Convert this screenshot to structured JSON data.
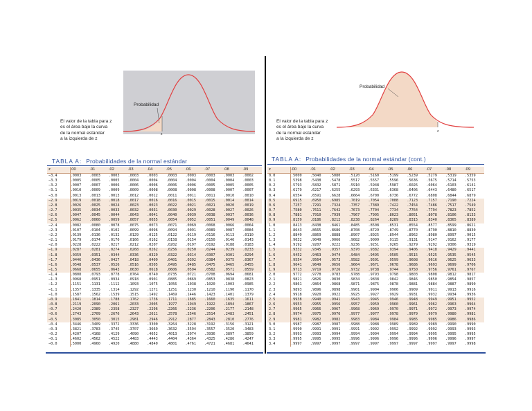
{
  "left": {
    "probability_label": "Probabilidad",
    "z_label": "z",
    "caption_lines": [
      "El valor de la tabla para z",
      "es el área bajo la curva",
      "de la normal estándar",
      "a la izquierda de z"
    ],
    "table_label": "TABLA A:",
    "table_title": "Probabilidades de la normal estándar",
    "columns": [
      "z",
      ".00",
      ".01",
      ".02",
      ".03",
      ".04",
      ".05",
      ".06",
      ".07",
      ".08",
      ".09"
    ],
    "rows": [
      [
        "−3.4",
        ".0003",
        ".0003",
        ".0003",
        ".0003",
        ".0003",
        ".0003",
        ".0003",
        ".0003",
        ".0003",
        ".0002"
      ],
      [
        "−3.3",
        ".0005",
        ".0005",
        ".0005",
        ".0004",
        ".0004",
        ".0004",
        ".0004",
        ".0004",
        ".0004",
        ".0003"
      ],
      [
        "−3.2",
        ".0007",
        ".0007",
        ".0006",
        ".0006",
        ".0006",
        ".0006",
        ".0006",
        ".0005",
        ".0005",
        ".0005"
      ],
      [
        "−3.1",
        ".0010",
        ".0009",
        ".0009",
        ".0009",
        ".0008",
        ".0008",
        ".0008",
        ".0008",
        ".0007",
        ".0007"
      ],
      [
        "−3.0",
        ".0013",
        ".0013",
        ".0013",
        ".0012",
        ".0012",
        ".0011",
        ".0011",
        ".0011",
        ".0010",
        ".0010"
      ],
      [
        "−2.9",
        ".0019",
        ".0018",
        ".0018",
        ".0017",
        ".0016",
        ".0016",
        ".0015",
        ".0015",
        ".0014",
        ".0014"
      ],
      [
        "−2.8",
        ".0026",
        ".0025",
        ".0024",
        ".0023",
        ".0023",
        ".0022",
        ".0021",
        ".0021",
        ".0020",
        ".0019"
      ],
      [
        "−2.7",
        ".0035",
        ".0034",
        ".0033",
        ".0032",
        ".0031",
        ".0030",
        ".0029",
        ".0028",
        ".0027",
        ".0026"
      ],
      [
        "−2.6",
        ".0047",
        ".0045",
        ".0044",
        ".0043",
        ".0041",
        ".0040",
        ".0039",
        ".0038",
        ".0037",
        ".0036"
      ],
      [
        "−2.5",
        ".0062",
        ".0060",
        ".0059",
        ".0057",
        ".0055",
        ".0054",
        ".0052",
        ".0051",
        ".0049",
        ".0048"
      ],
      [
        "−2.4",
        ".0082",
        ".0080",
        ".0078",
        ".0075",
        ".0073",
        ".0071",
        ".0069",
        ".0068",
        ".0066",
        ".0064"
      ],
      [
        "−2.3",
        ".0107",
        ".0104",
        ".0102",
        ".0099",
        ".0096",
        ".0094",
        ".0091",
        ".0089",
        ".0087",
        ".0084"
      ],
      [
        "−2.2",
        ".0139",
        ".0136",
        ".0132",
        ".0129",
        ".0125",
        ".0122",
        ".0119",
        ".0116",
        ".0113",
        ".0110"
      ],
      [
        "−2.1",
        ".0179",
        ".0174",
        ".0170",
        ".0166",
        ".0162",
        ".0158",
        ".0154",
        ".0150",
        ".0146",
        ".0143"
      ],
      [
        "−2.0",
        ".0228",
        ".0222",
        ".0217",
        ".0212",
        ".0207",
        ".0202",
        ".0197",
        ".0192",
        ".0188",
        ".0183"
      ],
      [
        "−1.9",
        ".0287",
        ".0281",
        ".0274",
        ".0268",
        ".0262",
        ".0256",
        ".0250",
        ".0244",
        ".0239",
        ".0233"
      ],
      [
        "−1.8",
        ".0359",
        ".0351",
        ".0344",
        ".0336",
        ".0329",
        ".0322",
        ".0314",
        ".0307",
        ".0301",
        ".0294"
      ],
      [
        "−1.7",
        ".0446",
        ".0436",
        ".0427",
        ".0418",
        ".0409",
        ".0401",
        ".0392",
        ".0384",
        ".0375",
        ".0367"
      ],
      [
        "−1.6",
        ".0548",
        ".0537",
        ".0526",
        ".0516",
        ".0505",
        ".0495",
        ".0485",
        ".0475",
        ".0465",
        ".0455"
      ],
      [
        "−1.5",
        ".0668",
        ".0655",
        ".0643",
        ".0630",
        ".0618",
        ".0606",
        ".0594",
        ".0582",
        ".0571",
        ".0559"
      ],
      [
        "−1.4",
        ".0808",
        ".0793",
        ".0778",
        ".0764",
        ".0749",
        ".0735",
        ".0721",
        ".0708",
        ".0694",
        ".0681"
      ],
      [
        "−1.3",
        ".0968",
        ".0951",
        ".0934",
        ".0918",
        ".0901",
        ".0885",
        ".0869",
        ".0853",
        ".0838",
        ".0823"
      ],
      [
        "−1.2",
        ".1151",
        ".1131",
        ".1112",
        ".1093",
        ".1075",
        ".1056",
        ".1038",
        ".1020",
        ".1003",
        ".0985"
      ],
      [
        "−1.1",
        ".1357",
        ".1335",
        ".1314",
        ".1292",
        ".1271",
        ".1251",
        ".1230",
        ".1210",
        ".1190",
        ".1170"
      ],
      [
        "−1.0",
        ".1587",
        ".1562",
        ".1539",
        ".1515",
        ".1492",
        ".1469",
        ".1446",
        ".1423",
        ".1401",
        ".1379"
      ],
      [
        "−0.9",
        ".1841",
        ".1814",
        ".1788",
        ".1762",
        ".1736",
        ".1711",
        ".1685",
        ".1660",
        ".1635",
        ".1611"
      ],
      [
        "−0.8",
        ".2119",
        ".2090",
        ".2061",
        ".2033",
        ".2005",
        ".1977",
        ".1949",
        ".1922",
        ".1894",
        ".1867"
      ],
      [
        "−0.7",
        ".2420",
        ".2389",
        ".2358",
        ".2327",
        ".2296",
        ".2266",
        ".2236",
        ".2206",
        ".2177",
        ".2148"
      ],
      [
        "−0.6",
        ".2743",
        ".2709",
        ".2676",
        ".2643",
        ".2611",
        ".2578",
        ".2546",
        ".2514",
        ".2483",
        ".2451"
      ],
      [
        "−0.5",
        ".3085",
        ".3050",
        ".3015",
        ".2981",
        ".2946",
        ".2912",
        ".2877",
        ".2843",
        ".2810",
        ".2776"
      ],
      [
        "−0.4",
        ".3446",
        ".3409",
        ".3372",
        ".3336",
        ".3300",
        ".3264",
        ".3228",
        ".3192",
        ".3156",
        ".3121"
      ],
      [
        "−0.3",
        ".3821",
        ".3783",
        ".3745",
        ".3707",
        ".3669",
        ".3632",
        ".3594",
        ".3557",
        ".3520",
        ".3483"
      ],
      [
        "−0.2",
        ".4207",
        ".4168",
        ".4129",
        ".4090",
        ".4052",
        ".4013",
        ".3974",
        ".3936",
        ".3897",
        ".3859"
      ],
      [
        "−0.1",
        ".4602",
        ".4562",
        ".4522",
        ".4483",
        ".4443",
        ".4404",
        ".4364",
        ".4325",
        ".4286",
        ".4247"
      ],
      [
        "−0.0",
        ".5000",
        ".4960",
        ".4920",
        ".4880",
        ".4840",
        ".4801",
        ".4761",
        ".4721",
        ".4681",
        ".4641"
      ]
    ]
  },
  "right": {
    "probability_label": "Probabilidad",
    "z_label": "z",
    "caption_lines": [
      "El valor de la tabla para z",
      "es el área bajo la curva",
      "de la normal estándar",
      "a la izquierda de z"
    ],
    "table_label": "TABLA A:",
    "table_title": "Probabilidades de la normal estándar (cont.)",
    "columns": [
      "z",
      ".00",
      ".01",
      ".02",
      ".03",
      ".04",
      ".05",
      ".06",
      ".07",
      ".08",
      ".09"
    ],
    "rows": [
      [
        "0.0",
        ".5000",
        ".5040",
        ".5080",
        ".5120",
        ".5160",
        ".5199",
        ".5239",
        ".5279",
        ".5319",
        ".5359"
      ],
      [
        "0.1",
        ".5398",
        ".5438",
        ".5478",
        ".5517",
        ".5557",
        ".5596",
        ".5636",
        ".5675",
        ".5714",
        ".5753"
      ],
      [
        "0.2",
        ".5793",
        ".5832",
        ".5871",
        ".5910",
        ".5948",
        ".5987",
        ".6026",
        ".6064",
        ".6103",
        ".6141"
      ],
      [
        "0.3",
        ".6179",
        ".6217",
        ".6255",
        ".6293",
        ".6331",
        ".6368",
        ".6406",
        ".6443",
        ".6480",
        ".6517"
      ],
      [
        "0.4",
        ".6554",
        ".6591",
        ".6628",
        ".6664",
        ".6700",
        ".6736",
        ".6772",
        ".6808",
        ".6844",
        ".6879"
      ],
      [
        "0.5",
        ".6915",
        ".6950",
        ".6985",
        ".7019",
        ".7054",
        ".7088",
        ".7123",
        ".7157",
        ".7190",
        ".7224"
      ],
      [
        "0.6",
        ".7257",
        ".7291",
        ".7324",
        ".7357",
        ".7389",
        ".7422",
        ".7454",
        ".7486",
        ".7517",
        ".7549"
      ],
      [
        "0.7",
        ".7580",
        ".7611",
        ".7642",
        ".7673",
        ".7704",
        ".7734",
        ".7764",
        ".7794",
        ".7823",
        ".7852"
      ],
      [
        "0.8",
        ".7881",
        ".7910",
        ".7939",
        ".7967",
        ".7995",
        ".8023",
        ".8051",
        ".8078",
        ".8106",
        ".8133"
      ],
      [
        "0.9",
        ".8159",
        ".8186",
        ".8212",
        ".8238",
        ".8264",
        ".8289",
        ".8315",
        ".8340",
        ".8365",
        ".8389"
      ],
      [
        "1.0",
        ".8413",
        ".8438",
        ".8461",
        ".8485",
        ".8508",
        ".8531",
        ".8554",
        ".8577",
        ".8599",
        ".8621"
      ],
      [
        "1.1",
        ".8643",
        ".8665",
        ".8686",
        ".8708",
        ".8729",
        ".8749",
        ".8770",
        ".8790",
        ".8810",
        ".8830"
      ],
      [
        "1.2",
        ".8849",
        ".8869",
        ".8888",
        ".8907",
        ".8925",
        ".8944",
        ".8962",
        ".8980",
        ".8997",
        ".9015"
      ],
      [
        "1.3",
        ".9032",
        ".9049",
        ".9066",
        ".9082",
        ".9099",
        ".9115",
        ".9131",
        ".9147",
        ".9162",
        ".9177"
      ],
      [
        "1.4",
        ".9192",
        ".9207",
        ".9222",
        ".9236",
        ".9251",
        ".9265",
        ".9279",
        ".9292",
        ".9306",
        ".9319"
      ],
      [
        "1.5",
        ".9332",
        ".9345",
        ".9357",
        ".9370",
        ".9382",
        ".9394",
        ".9406",
        ".9418",
        ".9429",
        ".9441"
      ],
      [
        "1.6",
        ".9452",
        ".9463",
        ".9474",
        ".9484",
        ".9495",
        ".9505",
        ".9515",
        ".9525",
        ".9535",
        ".9545"
      ],
      [
        "1.7",
        ".9554",
        ".9564",
        ".9573",
        ".9582",
        ".9591",
        ".9599",
        ".9608",
        ".9616",
        ".9625",
        ".9633"
      ],
      [
        "1.8",
        ".9641",
        ".9649",
        ".9656",
        ".9664",
        ".9671",
        ".9678",
        ".9686",
        ".9693",
        ".9699",
        ".9706"
      ],
      [
        "1.9",
        ".9713",
        ".9719",
        ".9726",
        ".9732",
        ".9738",
        ".9744",
        ".9750",
        ".9756",
        ".9761",
        ".9767"
      ],
      [
        "2.0",
        ".9772",
        ".9778",
        ".9783",
        ".9788",
        ".9793",
        ".9798",
        ".9803",
        ".9808",
        ".9812",
        ".9817"
      ],
      [
        "2.1",
        ".9821",
        ".9826",
        ".9830",
        ".9834",
        ".9838",
        ".9842",
        ".9846",
        ".9850",
        ".9854",
        ".9857"
      ],
      [
        "2.2",
        ".9861",
        ".9864",
        ".9868",
        ".9871",
        ".9875",
        ".9878",
        ".9881",
        ".9884",
        ".9887",
        ".9890"
      ],
      [
        "2.3",
        ".9893",
        ".9896",
        ".9898",
        ".9901",
        ".9904",
        ".9906",
        ".9909",
        ".9911",
        ".9913",
        ".9916"
      ],
      [
        "2.4",
        ".9918",
        ".9920",
        ".9922",
        ".9925",
        ".9927",
        ".9929",
        ".9931",
        ".9932",
        ".9934",
        ".9936"
      ],
      [
        "2.5",
        ".9938",
        ".9940",
        ".9941",
        ".9943",
        ".9945",
        ".9946",
        ".9948",
        ".9949",
        ".9951",
        ".9952"
      ],
      [
        "2.6",
        ".9953",
        ".9955",
        ".9956",
        ".9957",
        ".9959",
        ".9960",
        ".9961",
        ".9962",
        ".9963",
        ".9964"
      ],
      [
        "2.7",
        ".9965",
        ".9966",
        ".9967",
        ".9968",
        ".9969",
        ".9970",
        ".9971",
        ".9972",
        ".9973",
        ".9974"
      ],
      [
        "2.8",
        ".9974",
        ".9975",
        ".9976",
        ".9977",
        ".9977",
        ".9978",
        ".9979",
        ".9979",
        ".9980",
        ".9981"
      ],
      [
        "2.9",
        ".9981",
        ".9982",
        ".9982",
        ".9983",
        ".9984",
        ".9984",
        ".9985",
        ".9985",
        ".9986",
        ".9986"
      ],
      [
        "3.0",
        ".9987",
        ".9987",
        ".9987",
        ".9988",
        ".9988",
        ".9989",
        ".9989",
        ".9989",
        ".9990",
        ".9990"
      ],
      [
        "3.1",
        ".9990",
        ".9991",
        ".9991",
        ".9991",
        ".9992",
        ".9992",
        ".9992",
        ".9992",
        ".9993",
        ".9993"
      ],
      [
        "3.2",
        ".9993",
        ".9993",
        ".9994",
        ".9994",
        ".9994",
        ".9994",
        ".9994",
        ".9995",
        ".9995",
        ".9995"
      ],
      [
        "3.3",
        ".9995",
        ".9995",
        ".9995",
        ".9996",
        ".9996",
        ".9996",
        ".9996",
        ".9996",
        ".9996",
        ".9997"
      ],
      [
        "3.4",
        ".9997",
        ".9997",
        ".9997",
        ".9997",
        ".9997",
        ".9997",
        ".9997",
        ".9997",
        ".9997",
        ".9998"
      ]
    ]
  }
}
